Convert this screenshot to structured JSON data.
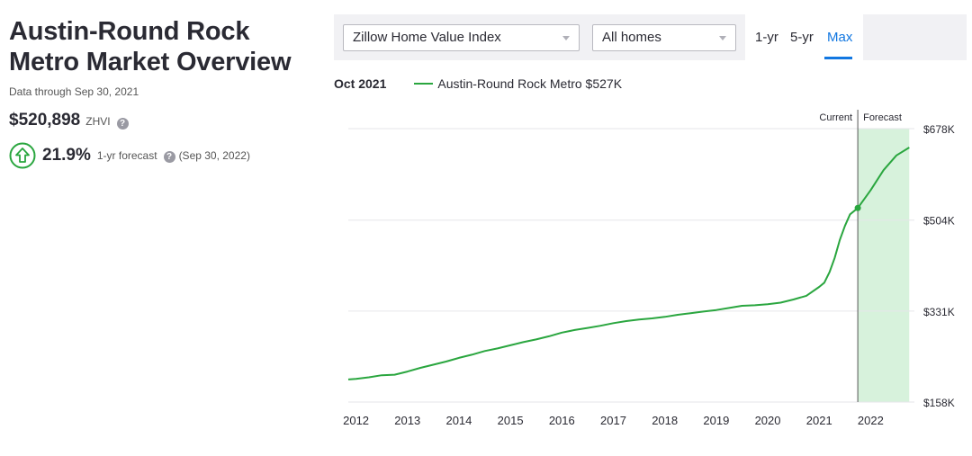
{
  "overview": {
    "title_line1": "Austin-Round Rock",
    "title_line2": "Metro Market Overview",
    "data_through": "Data through Sep 30, 2021",
    "zhvi_value": "$520,898",
    "zhvi_label": "ZHVI",
    "forecast_pct": "21.9%",
    "forecast_label": "1-yr forecast",
    "forecast_date": "(Sep 30, 2022)",
    "help_glyph": "?",
    "help_icon": "question-circle-icon",
    "forecast_icon": "up-arrow-circle-icon"
  },
  "toolbar": {
    "metric_select": "Zillow Home Value Index",
    "home_type_select": "All homes",
    "ranges": [
      "1-yr",
      "5-yr",
      "Max"
    ],
    "active_range": "Max"
  },
  "legend": {
    "date": "Oct 2021",
    "series_label": "Austin-Round Rock Metro $527K"
  },
  "chart_data": {
    "type": "line",
    "title": "",
    "xlabel": "",
    "ylabel": "",
    "x_ticks": [
      "2012",
      "2013",
      "2014",
      "2015",
      "2016",
      "2017",
      "2018",
      "2019",
      "2020",
      "2021",
      "2022"
    ],
    "y_ticks": [
      {
        "value": 158,
        "label": "$158K"
      },
      {
        "value": 331,
        "label": "$331K"
      },
      {
        "value": 504,
        "label": "$504K"
      },
      {
        "value": 678,
        "label": "$678K"
      }
    ],
    "ylim": [
      158,
      678
    ],
    "xlim": [
      2011.85,
      2022.85
    ],
    "current_label": "Current",
    "forecast_label": "Forecast",
    "current_x": 2021.75,
    "forecast_end_x": 2022.75,
    "current_value": 527,
    "series": [
      {
        "name": "Austin-Round Rock Metro",
        "color": "#2aa63f",
        "x": [
          2011.85,
          2012.0,
          2012.25,
          2012.5,
          2012.75,
          2013.0,
          2013.25,
          2013.5,
          2013.75,
          2014.0,
          2014.25,
          2014.5,
          2014.75,
          2015.0,
          2015.25,
          2015.5,
          2015.75,
          2016.0,
          2016.25,
          2016.5,
          2016.75,
          2017.0,
          2017.25,
          2017.5,
          2017.75,
          2018.0,
          2018.25,
          2018.5,
          2018.75,
          2019.0,
          2019.25,
          2019.5,
          2019.75,
          2020.0,
          2020.25,
          2020.5,
          2020.75,
          2021.0,
          2021.1,
          2021.2,
          2021.3,
          2021.4,
          2021.5,
          2021.6,
          2021.75
        ],
        "y": [
          201,
          202,
          205,
          209,
          210,
          216,
          223,
          229,
          235,
          242,
          248,
          255,
          260,
          266,
          272,
          277,
          283,
          290,
          295,
          299,
          303,
          308,
          312,
          315,
          317,
          320,
          324,
          327,
          330,
          333,
          337,
          341,
          342,
          344,
          347,
          353,
          360,
          377,
          385,
          405,
          432,
          466,
          493,
          515,
          527
        ],
        "forecast_x": [
          2021.75,
          2022.0,
          2022.25,
          2022.5,
          2022.75
        ],
        "forecast_y": [
          527,
          561,
          599,
          627,
          642
        ]
      }
    ]
  }
}
